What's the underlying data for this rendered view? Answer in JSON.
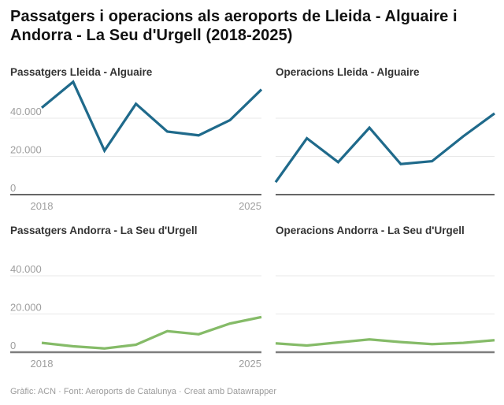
{
  "title": "Passatgers i operacions als aeroports de Lleida - Alguaire i Andorra - La Seu d'Urgell (2018-2025)",
  "footer": "Gràfic: ACN · Font: Aeroports de Catalunya · Creat amb Datawrapper",
  "colors": {
    "teal": "#1f6a8b",
    "green": "#85bb68",
    "gridline": "#e8e8e8",
    "axis_dark": "#333333",
    "axis_gray": "#7d7d7d",
    "tick_label": "#9e9e9e",
    "panel_title": "#333333",
    "main_title": "#111111",
    "footer_text": "#9b9b9b",
    "background": "#ffffff"
  },
  "chart_data": [
    {
      "id": "passatgers-lleida-alguaire",
      "panel": "top-left",
      "type": "line",
      "title": "Passatgers Lleida - Alguaire",
      "x": [
        2018,
        2019,
        2020,
        2021,
        2022,
        2023,
        2024,
        2025
      ],
      "values": [
        45500,
        59000,
        23000,
        47500,
        33000,
        31000,
        39000,
        55000
      ],
      "color": "#1f6a8b",
      "ylim": [
        0,
        69000
      ],
      "gridlines": [
        20000,
        40000
      ],
      "yticks": [
        {
          "value": 0,
          "label": "0"
        },
        {
          "value": 20000,
          "label": "20.000"
        },
        {
          "value": 40000,
          "label": "40.000"
        }
      ],
      "x_tick_labels": [
        "2018",
        "2025"
      ],
      "axis_style": "dark",
      "y_axis_unlabeled": false
    },
    {
      "id": "operacions-lleida-alguaire",
      "panel": "top-right",
      "type": "line",
      "title": "Operacions Lleida - Alguaire",
      "x": [
        2018,
        2019,
        2020,
        2021,
        2022,
        2023,
        2024,
        2025
      ],
      "values": [
        6500,
        29500,
        17000,
        35000,
        16000,
        17500,
        30500,
        42500
      ],
      "color": "#1f6a8b",
      "ylim": [
        0,
        69000
      ],
      "gridlines": [
        20000,
        40000
      ],
      "yticks": [],
      "x_tick_labels": [],
      "axis_style": "dark",
      "y_axis_unlabeled": true
    },
    {
      "id": "passatgers-andorra-la-seu",
      "panel": "bottom-left",
      "type": "line",
      "title": "Passatgers Andorra - La Seu d'Urgell",
      "x": [
        2018,
        2019,
        2020,
        2021,
        2022,
        2023,
        2024,
        2025
      ],
      "values": [
        4900,
        3100,
        2000,
        3900,
        11000,
        9400,
        15000,
        18400
      ],
      "color": "#85bb68",
      "ylim": [
        0,
        69000
      ],
      "gridlines": [
        20000,
        40000
      ],
      "yticks": [
        {
          "value": 0,
          "label": "0"
        },
        {
          "value": 20000,
          "label": "20.000"
        },
        {
          "value": 40000,
          "label": "40.000"
        }
      ],
      "x_tick_labels": [
        "2018",
        "2025"
      ],
      "axis_style": "gray",
      "y_axis_unlabeled": false
    },
    {
      "id": "operacions-andorra-la-seu",
      "panel": "bottom-right",
      "type": "line",
      "title": "Operacions Andorra - La Seu d'Urgell",
      "x": [
        2018,
        2019,
        2020,
        2021,
        2022,
        2023,
        2024,
        2025
      ],
      "values": [
        4600,
        3500,
        5100,
        6700,
        5300,
        4200,
        4900,
        6300
      ],
      "color": "#85bb68",
      "ylim": [
        0,
        69000
      ],
      "gridlines": [
        20000,
        40000
      ],
      "yticks": [],
      "x_tick_labels": [],
      "axis_style": "gray",
      "y_axis_unlabeled": true
    }
  ]
}
